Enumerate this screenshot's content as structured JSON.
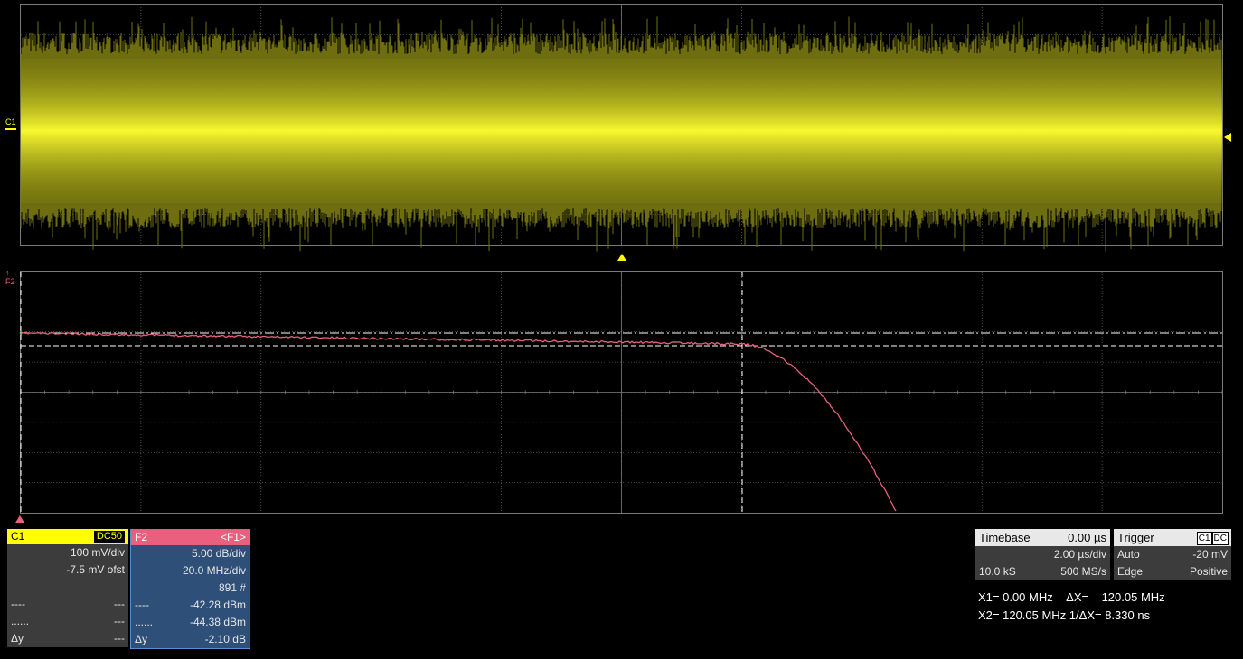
{
  "colors": {
    "c1_trace": "#c8c800",
    "f2_trace": "#e8607e",
    "grid": "#7a7a7a",
    "c1_header": "#ffff00",
    "f2_header": "#e8607e",
    "f2_body": "#2e4f78"
  },
  "markers": {
    "c1_label": "C1",
    "f2_label": "F2"
  },
  "c1": {
    "name": "C1",
    "coupling": "DC50",
    "vdiv": "100 mV/div",
    "offset": "-7.5 mV ofst",
    "row3_l": "",
    "row3_r": "",
    "row4_l": "----",
    "row4_r": "---",
    "row5_l": "......",
    "row5_r": "---",
    "row6_l": "Δy",
    "row6_r": "---"
  },
  "f2": {
    "name": "F2",
    "source": "<F1>",
    "vdiv": "5.00 dB/div",
    "hdiv": "20.0 MHz/div",
    "count": "891 #",
    "cursor1_l": "----",
    "cursor1": "-42.28 dBm",
    "cursor2_l": "......",
    "cursor2": "-44.38 dBm",
    "delta_l": "Δy",
    "delta": "-2.10 dB"
  },
  "timebase": {
    "label": "Timebase",
    "delay": "0.00 µs",
    "tdiv": "2.00 µs/div",
    "samples": "10.0 kS",
    "rate": "500 MS/s"
  },
  "trigger": {
    "label": "Trigger",
    "source": "C1",
    "coupling": "DC",
    "mode": "Auto",
    "level": "-20 mV",
    "type": "Edge",
    "slope": "Positive"
  },
  "cursors": {
    "line1": "X1= 0.00 MHz    ΔX=    120.05 MHz",
    "line2": "X2= 120.05 MHz 1/ΔX= 8.330 ns"
  }
}
